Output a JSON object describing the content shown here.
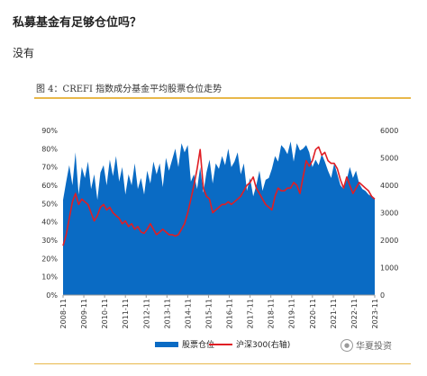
{
  "question": "私募基金有足够仓位吗？",
  "answer": "没有",
  "figure": {
    "title": "图 4：CREFI 指数成分基金平均股票仓位走势",
    "watermark": "华夏投资"
  },
  "colors": {
    "area": "#0a6bc4",
    "line": "#e01e24",
    "accent": "#e8b84a"
  },
  "chart_data": {
    "type": "area",
    "title": "",
    "xlabel": "",
    "ylabel": "",
    "x_ticks": [
      "2008-11",
      "2009-11",
      "2010-11",
      "2011-11",
      "2012-11",
      "2013-11",
      "2014-11",
      "2015-11",
      "2016-11",
      "2017-11",
      "2018-11",
      "2019-11",
      "2020-11",
      "2021-11",
      "2022-11",
      "2023-11"
    ],
    "y_left": {
      "ticks": [
        "0%",
        "10%",
        "20%",
        "30%",
        "40%",
        "50%",
        "60%",
        "70%",
        "80%",
        "90%"
      ],
      "range": [
        0,
        90
      ]
    },
    "y_right": {
      "ticks": [
        "0",
        "1000",
        "2000",
        "3000",
        "4000",
        "5000",
        "6000"
      ],
      "range": [
        0,
        6000
      ]
    },
    "grid": false,
    "legend_position": "bottom",
    "series": [
      {
        "name": "股票仓位",
        "type": "area",
        "axis": "left",
        "x": [
          2008.85,
          2009.0,
          2009.15,
          2009.3,
          2009.45,
          2009.6,
          2009.75,
          2009.9,
          2010.05,
          2010.2,
          2010.35,
          2010.5,
          2010.65,
          2010.8,
          2010.95,
          2011.1,
          2011.25,
          2011.4,
          2011.55,
          2011.7,
          2011.85,
          2012.0,
          2012.15,
          2012.3,
          2012.45,
          2012.6,
          2012.75,
          2012.9,
          2013.05,
          2013.2,
          2013.35,
          2013.5,
          2013.65,
          2013.8,
          2013.95,
          2014.1,
          2014.25,
          2014.4,
          2014.55,
          2014.7,
          2014.85,
          2015.0,
          2015.15,
          2015.3,
          2015.45,
          2015.6,
          2015.75,
          2015.9,
          2016.05,
          2016.2,
          2016.35,
          2016.5,
          2016.65,
          2016.8,
          2016.95,
          2017.1,
          2017.25,
          2017.4,
          2017.55,
          2017.7,
          2017.85,
          2018.0,
          2018.15,
          2018.3,
          2018.45,
          2018.6,
          2018.75,
          2018.9,
          2019.05,
          2019.2,
          2019.35,
          2019.5,
          2019.65,
          2019.8,
          2019.95,
          2020.1,
          2020.25,
          2020.4,
          2020.55,
          2020.7,
          2020.85,
          2021.0,
          2021.15,
          2021.3,
          2021.45,
          2021.6,
          2021.75,
          2021.9,
          2022.05,
          2022.2,
          2022.35,
          2022.5,
          2022.65,
          2022.8,
          2022.95,
          2023.1,
          2023.25,
          2023.4,
          2023.55,
          2023.7,
          2023.85
        ],
        "values": [
          52,
          62,
          71,
          60,
          78,
          55,
          70,
          64,
          73,
          58,
          66,
          52,
          67,
          71,
          60,
          74,
          65,
          76,
          62,
          70,
          55,
          66,
          60,
          72,
          58,
          64,
          55,
          68,
          61,
          73,
          66,
          72,
          59,
          75,
          68,
          74,
          80,
          70,
          83,
          78,
          82,
          62,
          66,
          58,
          70,
          56,
          67,
          74,
          61,
          72,
          69,
          76,
          71,
          80,
          70,
          73,
          78,
          66,
          72,
          57,
          64,
          54,
          60,
          68,
          57,
          63,
          64,
          69,
          76,
          73,
          82,
          80,
          77,
          84,
          73,
          83,
          79,
          80,
          82,
          78,
          70,
          74,
          71,
          77,
          73,
          68,
          64,
          72,
          66,
          60,
          58,
          63,
          70,
          64,
          68,
          61,
          58,
          57,
          55,
          54,
          53
        ]
      },
      {
        "name": "沪深300(右轴)",
        "type": "line",
        "axis": "right",
        "x": [
          2008.85,
          2009.0,
          2009.15,
          2009.3,
          2009.45,
          2009.6,
          2009.75,
          2009.9,
          2010.05,
          2010.2,
          2010.35,
          2010.5,
          2010.65,
          2010.8,
          2010.95,
          2011.1,
          2011.25,
          2011.4,
          2011.55,
          2011.7,
          2011.85,
          2012.0,
          2012.15,
          2012.3,
          2012.45,
          2012.6,
          2012.75,
          2012.9,
          2013.05,
          2013.2,
          2013.35,
          2013.5,
          2013.65,
          2013.8,
          2013.95,
          2014.1,
          2014.25,
          2014.4,
          2014.55,
          2014.7,
          2014.85,
          2015.0,
          2015.15,
          2015.3,
          2015.45,
          2015.6,
          2015.75,
          2015.9,
          2016.05,
          2016.2,
          2016.35,
          2016.5,
          2016.65,
          2016.8,
          2016.95,
          2017.1,
          2017.25,
          2017.4,
          2017.55,
          2017.7,
          2017.85,
          2018.0,
          2018.15,
          2018.3,
          2018.45,
          2018.6,
          2018.75,
          2018.9,
          2019.05,
          2019.2,
          2019.35,
          2019.5,
          2019.65,
          2019.8,
          2019.95,
          2020.1,
          2020.25,
          2020.4,
          2020.55,
          2020.7,
          2020.85,
          2021.0,
          2021.15,
          2021.3,
          2021.45,
          2021.6,
          2021.75,
          2021.9,
          2022.05,
          2022.2,
          2022.35,
          2022.5,
          2022.65,
          2022.8,
          2022.95,
          2023.1,
          2023.25,
          2023.4,
          2023.55,
          2023.7,
          2023.85
        ],
        "values": [
          1800,
          2200,
          2800,
          3400,
          3700,
          3300,
          3500,
          3400,
          3300,
          3000,
          2700,
          2900,
          3200,
          3300,
          3100,
          3200,
          3000,
          2900,
          2800,
          2600,
          2700,
          2500,
          2600,
          2400,
          2500,
          2300,
          2250,
          2400,
          2600,
          2400,
          2200,
          2300,
          2400,
          2300,
          2200,
          2200,
          2150,
          2200,
          2400,
          2600,
          3000,
          3500,
          4000,
          4600,
          5300,
          3900,
          3600,
          3500,
          3000,
          3100,
          3200,
          3300,
          3300,
          3400,
          3300,
          3400,
          3500,
          3600,
          3800,
          4000,
          4100,
          4300,
          3900,
          3700,
          3500,
          3300,
          3200,
          3100,
          3600,
          3900,
          3800,
          3800,
          3900,
          3900,
          4100,
          4000,
          3700,
          4300,
          4900,
          4700,
          4900,
          5300,
          5400,
          5100,
          5200,
          4900,
          4800,
          4800,
          4600,
          4200,
          3900,
          4300,
          4000,
          3700,
          3900,
          4100,
          4000,
          3900,
          3800,
          3600,
          3500
        ]
      }
    ]
  }
}
